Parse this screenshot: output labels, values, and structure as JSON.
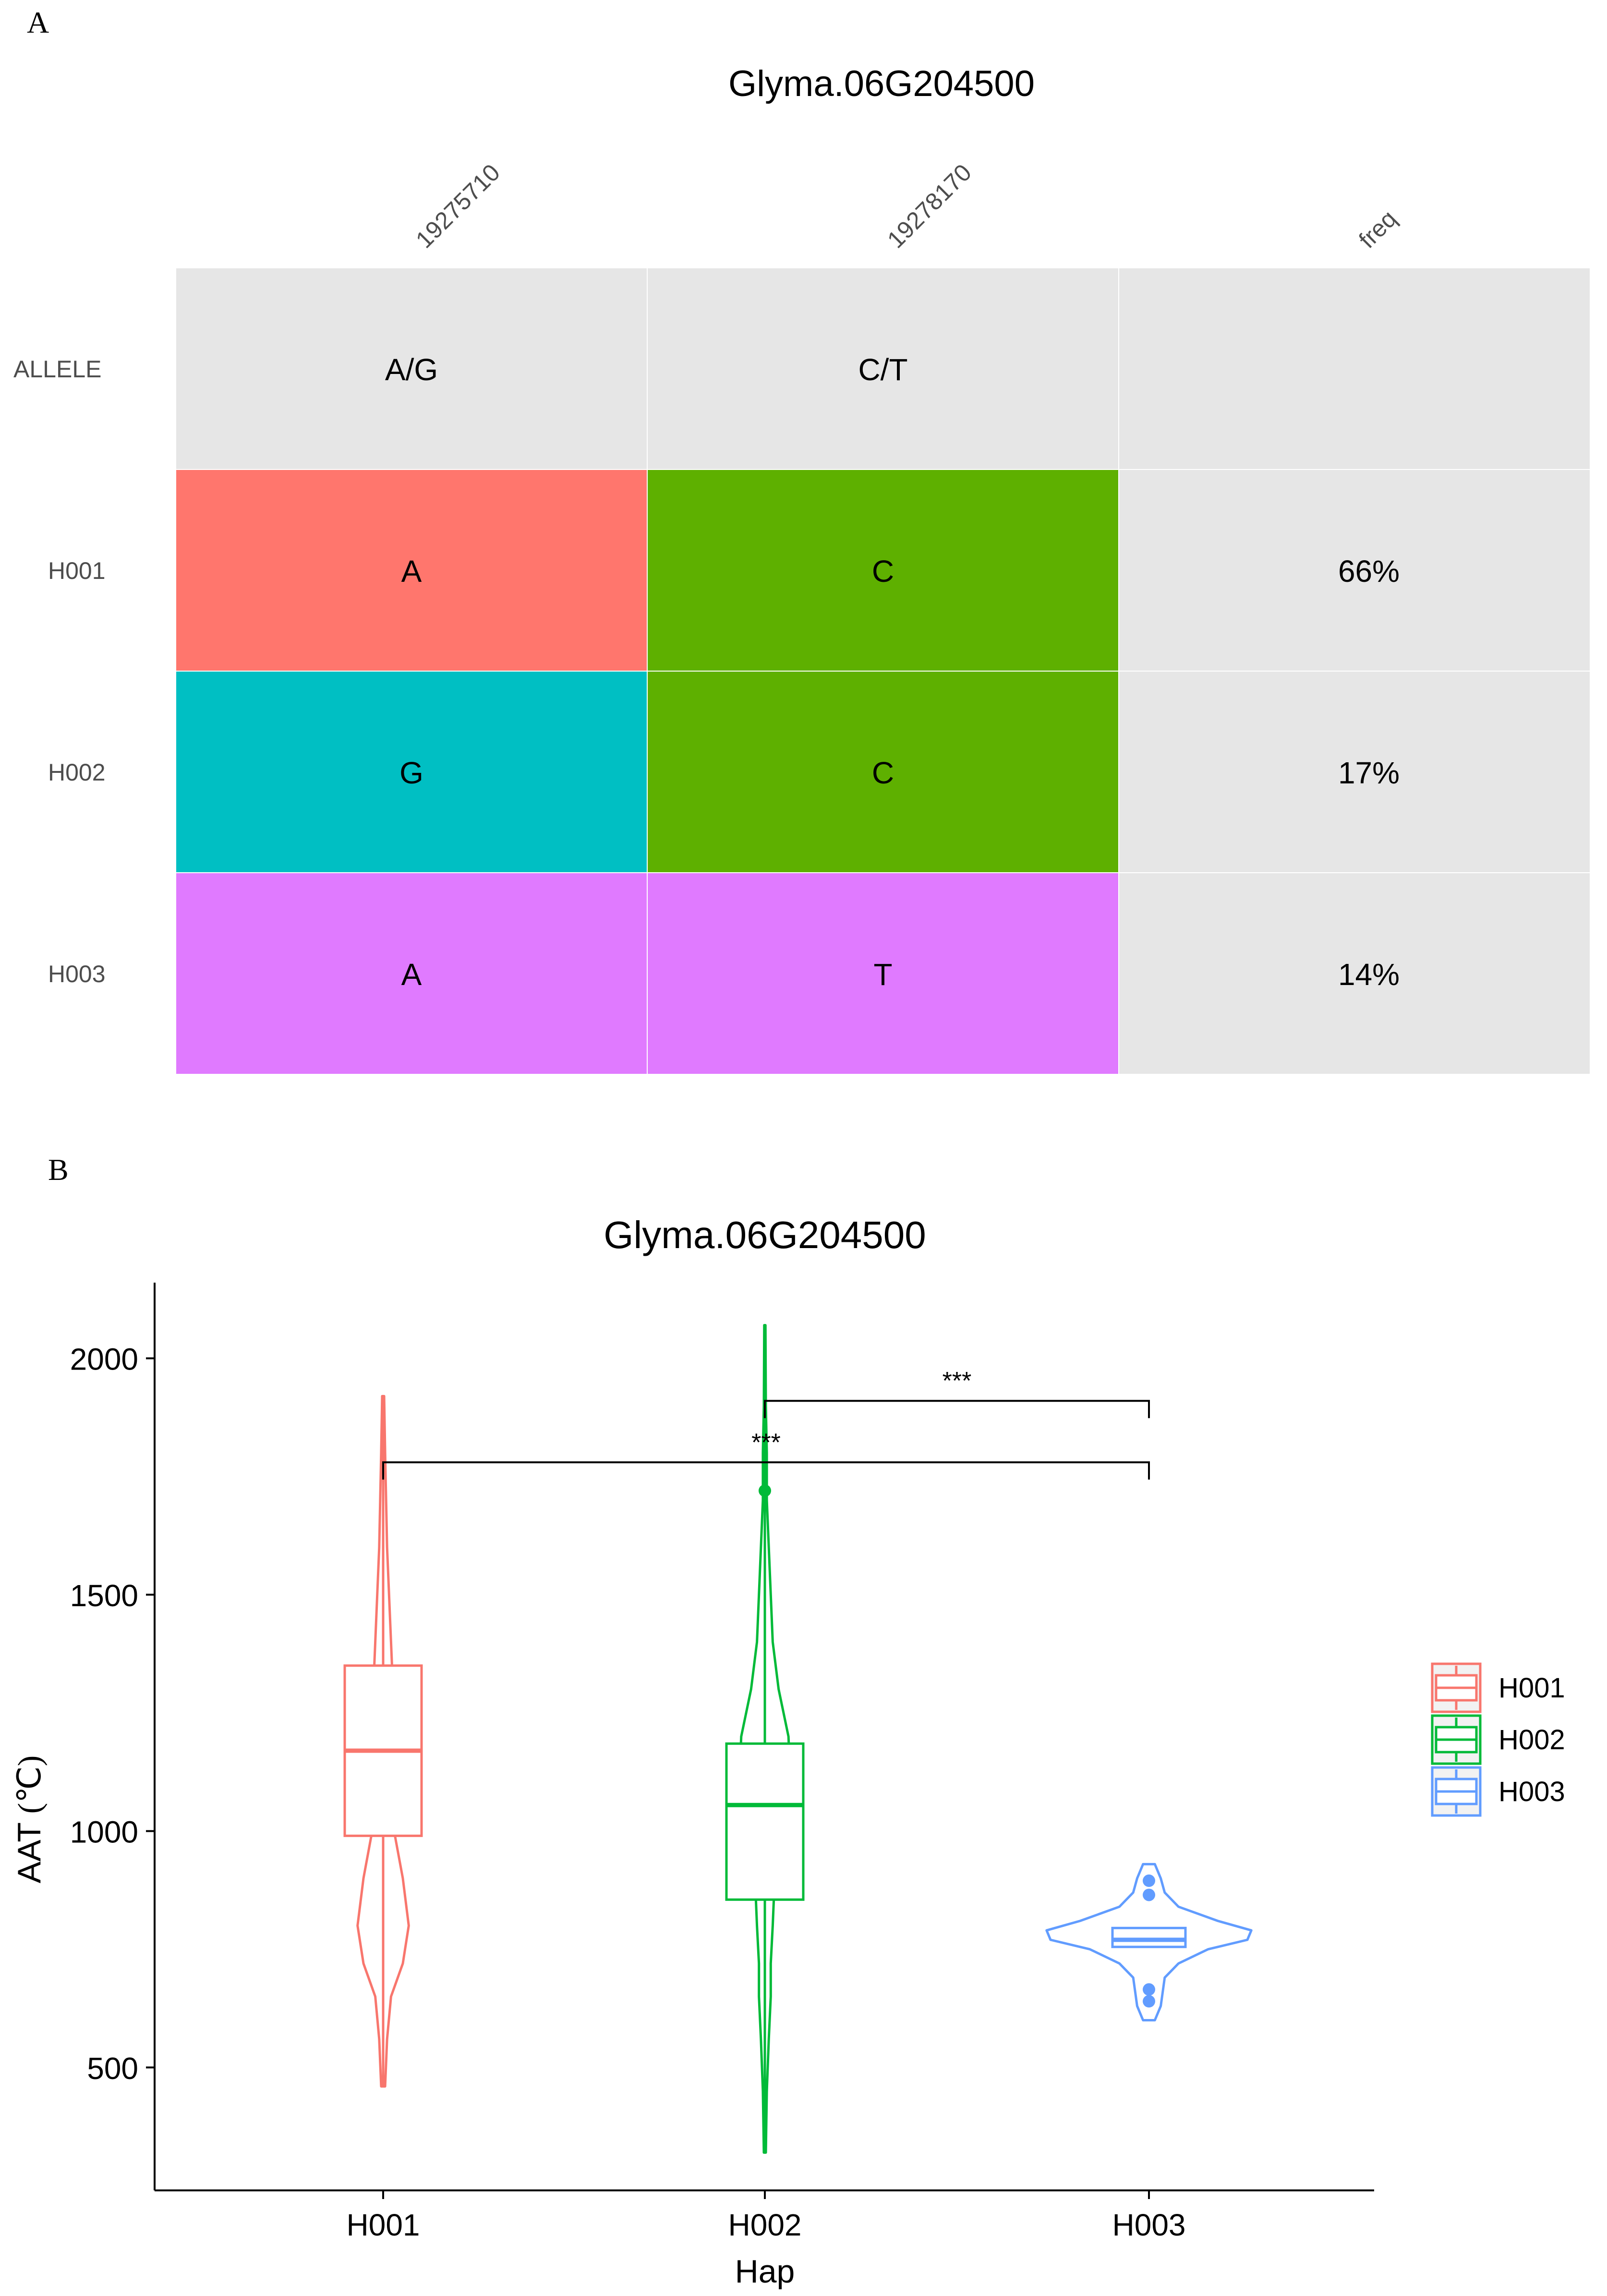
{
  "panel_a": {
    "letter": "A",
    "title": "Glyma.06G204500",
    "columns": [
      "19275710",
      "19278170",
      "freq"
    ],
    "rows": [
      {
        "label": "ALLELE",
        "cells": [
          "A/G",
          "C/T",
          ""
        ],
        "fills": [
          "#e6e6e6",
          "#e6e6e6",
          "#e6e6e6"
        ]
      },
      {
        "label": "H001",
        "cells": [
          "A",
          "C",
          "66%"
        ],
        "fills": [
          "#ff766d",
          "#5eb000",
          "#e6e6e6"
        ]
      },
      {
        "label": "H002",
        "cells": [
          "G",
          "C",
          "17%"
        ],
        "fills": [
          "#00bfc3",
          "#5eb000",
          "#e6e6e6"
        ]
      },
      {
        "label": "H003",
        "cells": [
          "A",
          "T",
          "14%"
        ],
        "fills": [
          "#e07aff",
          "#e07aff",
          "#e6e6e6"
        ]
      }
    ]
  },
  "panel_b": {
    "letter": "B",
    "chart_data": {
      "type": "violin-box",
      "title": "Glyma.06G204500",
      "xlabel": "Hap",
      "ylabel_text": "AAT",
      "ylabel_unit": "(℃)",
      "categories": [
        "H001",
        "H002",
        "H003"
      ],
      "ylim": [
        240,
        2160
      ],
      "yticks": [
        500,
        1000,
        1500,
        2000
      ],
      "series": [
        {
          "name": "H001",
          "color": "#f8766d",
          "min": 460,
          "max": 1920,
          "q1": 990,
          "median": 1170,
          "q3": 1350,
          "whisker_low": 460,
          "whisker_high": 1920,
          "outliers": [],
          "violin": [
            [
              460,
              0.01
            ],
            [
              560,
              0.02
            ],
            [
              650,
              0.04
            ],
            [
              720,
              0.1
            ],
            [
              800,
              0.13
            ],
            [
              900,
              0.1
            ],
            [
              990,
              0.06
            ],
            [
              1100,
              0.05
            ],
            [
              1200,
              0.06
            ],
            [
              1300,
              0.05
            ],
            [
              1400,
              0.04
            ],
            [
              1500,
              0.03
            ],
            [
              1600,
              0.02
            ],
            [
              1700,
              0.015
            ],
            [
              1800,
              0.01
            ],
            [
              1920,
              0.005
            ]
          ]
        },
        {
          "name": "H002",
          "color": "#00ba38",
          "min": 320,
          "max": 2070,
          "q1": 855,
          "median": 1055,
          "q3": 1185,
          "whisker_low": 320,
          "whisker_high": 2070,
          "outliers": [
            1720
          ],
          "violin": [
            [
              320,
              0.005
            ],
            [
              450,
              0.01
            ],
            [
              560,
              0.02
            ],
            [
              650,
              0.03
            ],
            [
              720,
              0.03
            ],
            [
              800,
              0.04
            ],
            [
              900,
              0.05
            ],
            [
              1000,
              0.07
            ],
            [
              1100,
              0.13
            ],
            [
              1200,
              0.12
            ],
            [
              1300,
              0.07
            ],
            [
              1400,
              0.04
            ],
            [
              1500,
              0.03
            ],
            [
              1600,
              0.02
            ],
            [
              1700,
              0.01
            ],
            [
              1800,
              0.01
            ],
            [
              1900,
              0.005
            ],
            [
              2070,
              0.003
            ]
          ]
        },
        {
          "name": "H003",
          "color": "#619cff",
          "min": 600,
          "max": 930,
          "q1": 755,
          "median": 770,
          "q3": 795,
          "whisker_low": 755,
          "whisker_high": 795,
          "outliers": [
            640,
            665,
            865,
            895
          ],
          "violin": [
            [
              600,
              0.03
            ],
            [
              630,
              0.06
            ],
            [
              660,
              0.07
            ],
            [
              690,
              0.08
            ],
            [
              720,
              0.15
            ],
            [
              750,
              0.3
            ],
            [
              770,
              0.5
            ],
            [
              790,
              0.52
            ],
            [
              810,
              0.35
            ],
            [
              840,
              0.15
            ],
            [
              870,
              0.08
            ],
            [
              900,
              0.06
            ],
            [
              930,
              0.03
            ]
          ]
        }
      ],
      "comparisons": [
        {
          "from": "H001",
          "to": "H003",
          "y": 1780,
          "label": "***"
        },
        {
          "from": "H002",
          "to": "H003",
          "y": 1910,
          "label": "***"
        }
      ],
      "legend": {
        "position": "right",
        "entries": [
          "H001",
          "H002",
          "H003"
        ]
      }
    }
  }
}
